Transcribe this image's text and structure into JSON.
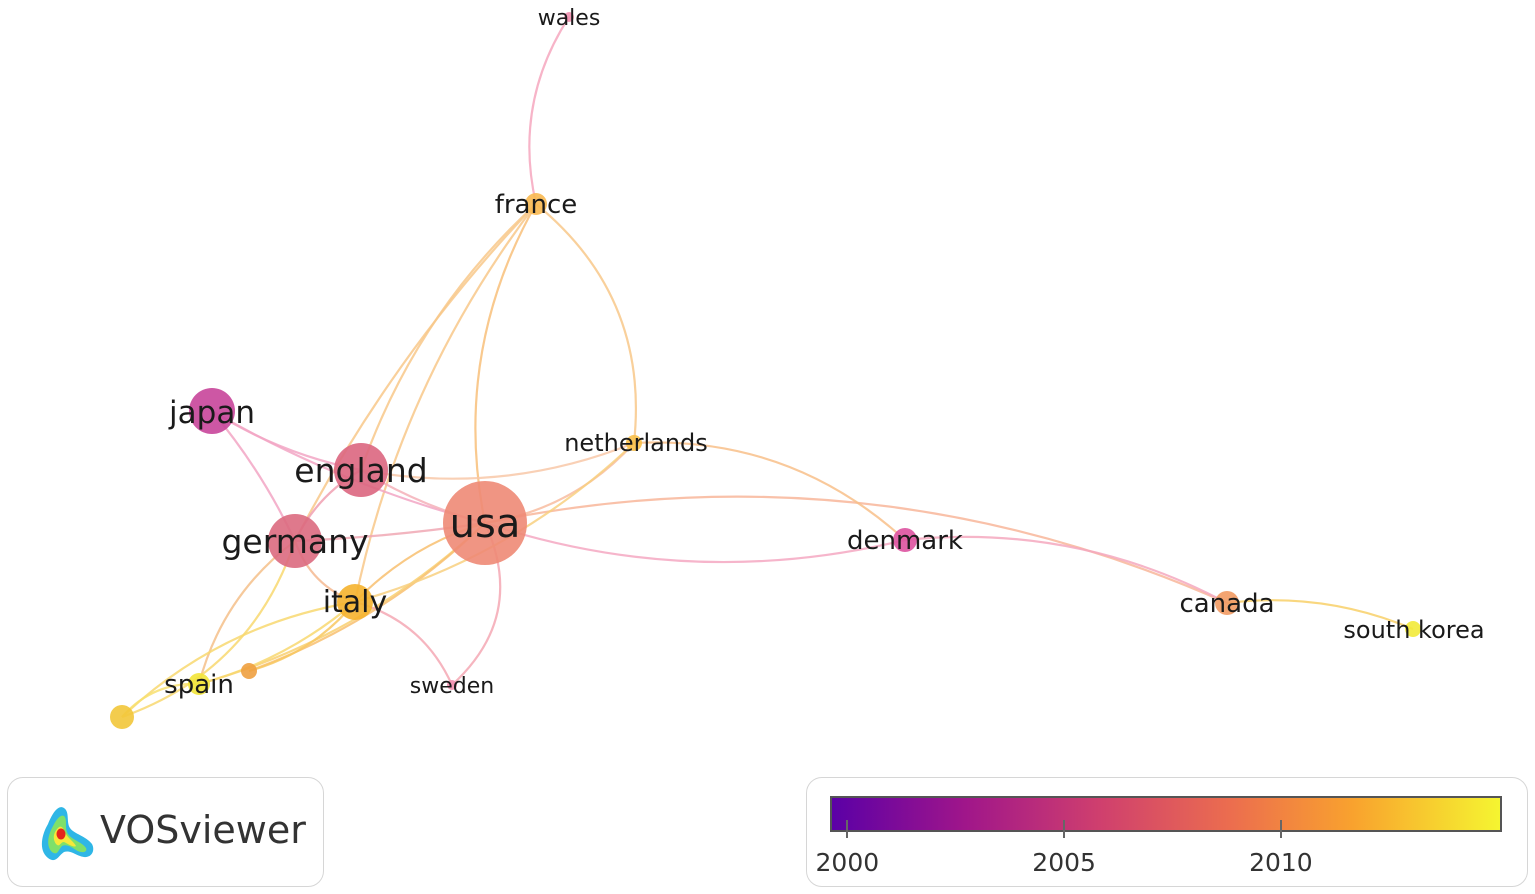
{
  "nodes": [
    {
      "id": "wales",
      "label": "wales",
      "color": "#ef8fae"
    },
    {
      "id": "france",
      "label": "france",
      "color": "#f8b850"
    },
    {
      "id": "japan",
      "label": "japan",
      "color": "#c8459a"
    },
    {
      "id": "netherlands",
      "label": "netherlands",
      "color": "#f8c04a"
    },
    {
      "id": "england",
      "label": "england",
      "color": "#dc6680"
    },
    {
      "id": "usa",
      "label": "usa",
      "color": "#ee8a76"
    },
    {
      "id": "germany",
      "label": "germany",
      "color": "#dc6a80"
    },
    {
      "id": "denmark",
      "label": "denmark",
      "color": "#dd52a0"
    },
    {
      "id": "italy",
      "label": "italy",
      "color": "#f5b22e"
    },
    {
      "id": "canada",
      "label": "canada",
      "color": "#f29a62"
    },
    {
      "id": "south_korea",
      "label": "south korea",
      "color": "#f2ea3a"
    },
    {
      "id": "spain",
      "label": "spain",
      "color": "#f2e43a"
    },
    {
      "id": "sweden",
      "label": "sweden",
      "color": "#ef8fae"
    },
    {
      "id": "unlabeled_a",
      "label": "",
      "color": "#eea040"
    },
    {
      "id": "unlabeled_b",
      "label": "",
      "color": "#f2c63a"
    }
  ],
  "links": [
    {
      "s": "wales",
      "t": "france",
      "color": "#f6a7be"
    },
    {
      "s": "france",
      "t": "usa",
      "color": "#f8c07a"
    },
    {
      "s": "france",
      "t": "england",
      "color": "#f8c88a"
    },
    {
      "s": "france",
      "t": "netherlands",
      "color": "#f8c88a"
    },
    {
      "s": "france",
      "t": "italy",
      "color": "#f8c88a"
    },
    {
      "s": "france",
      "t": "germany",
      "color": "#f8c88a"
    },
    {
      "s": "japan",
      "t": "usa",
      "color": "#f2a6c4"
    },
    {
      "s": "japan",
      "t": "germany",
      "color": "#f2a6c4"
    },
    {
      "s": "japan",
      "t": "england",
      "color": "#f2a6c4"
    },
    {
      "s": "england",
      "t": "usa",
      "color": "#f4b0b8"
    },
    {
      "s": "england",
      "t": "germany",
      "color": "#f0a0b2"
    },
    {
      "s": "england",
      "t": "netherlands",
      "color": "#f8c8a8"
    },
    {
      "s": "germany",
      "t": "usa",
      "color": "#f0a8b4"
    },
    {
      "s": "germany",
      "t": "italy",
      "color": "#f4b890"
    },
    {
      "s": "germany",
      "t": "spain",
      "color": "#f4c08a"
    },
    {
      "s": "usa",
      "t": "netherlands",
      "color": "#f8bca0"
    },
    {
      "s": "usa",
      "t": "denmark",
      "color": "#f4a8c2"
    },
    {
      "s": "usa",
      "t": "italy",
      "color": "#f8c070"
    },
    {
      "s": "usa",
      "t": "canada",
      "color": "#f8b69a"
    },
    {
      "s": "usa",
      "t": "sweden",
      "color": "#f4a8b4"
    },
    {
      "s": "usa",
      "t": "spain",
      "color": "#f8d070"
    },
    {
      "s": "usa",
      "t": "unlabeled_a",
      "color": "#f8c070"
    },
    {
      "s": "netherlands",
      "t": "denmark",
      "color": "#f8c08a"
    },
    {
      "s": "netherlands",
      "t": "italy",
      "color": "#f8d080"
    },
    {
      "s": "denmark",
      "t": "canada",
      "color": "#f4a8be"
    },
    {
      "s": "canada",
      "t": "south_korea",
      "color": "#f8d068"
    },
    {
      "s": "italy",
      "t": "spain",
      "color": "#f8d870"
    },
    {
      "s": "italy",
      "t": "sweden",
      "color": "#f4a8b4"
    },
    {
      "s": "italy",
      "t": "unlabeled_a",
      "color": "#f8c860"
    },
    {
      "s": "unlabeled_b",
      "t": "germany",
      "color": "#f8d870"
    },
    {
      "s": "unlabeled_b",
      "t": "italy",
      "color": "#f8d870"
    },
    {
      "s": "unlabeled_b",
      "t": "spain",
      "color": "#f8e070"
    }
  ],
  "logo": {
    "text": "VOSviewer"
  },
  "legend": {
    "ticks": [
      {
        "label": "2000",
        "value": 2000
      },
      {
        "label": "2005",
        "value": 2005
      },
      {
        "label": "2010",
        "value": 2010
      }
    ]
  }
}
